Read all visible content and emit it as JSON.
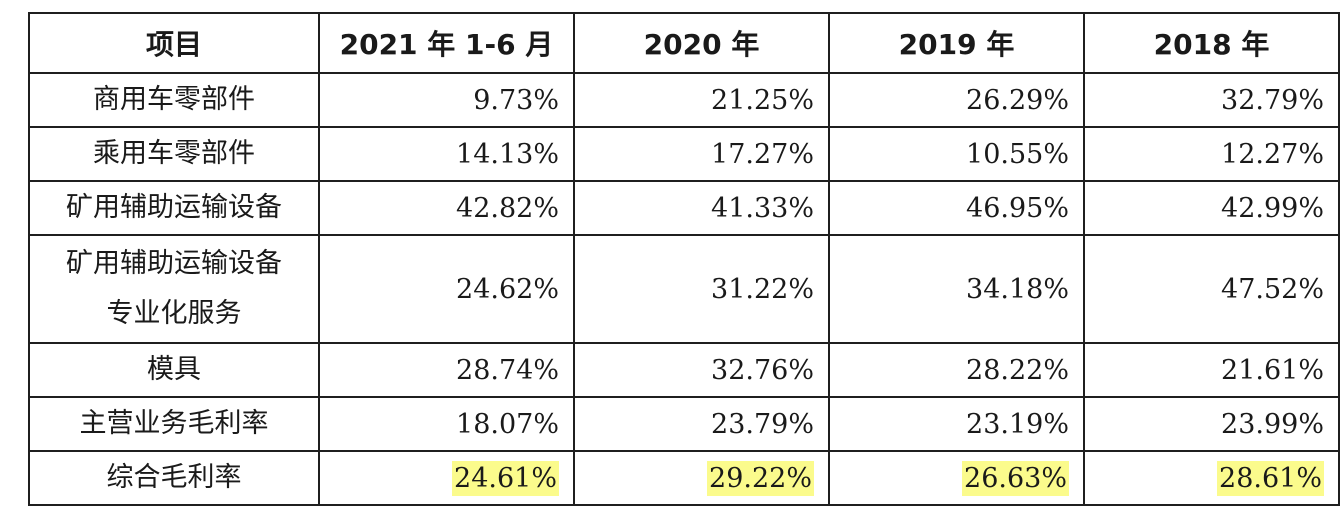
{
  "table": {
    "headers": [
      "项目",
      "2021 年 1-6 月",
      "2020 年",
      "2019 年",
      "2018 年"
    ],
    "rows": [
      {
        "label": [
          "商用车零部件"
        ],
        "values": [
          "9.73%",
          "21.25%",
          "26.29%",
          "32.79%"
        ]
      },
      {
        "label": [
          "乘用车零部件"
        ],
        "values": [
          "14.13%",
          "17.27%",
          "10.55%",
          "12.27%"
        ]
      },
      {
        "label": [
          "矿用辅助运输设备"
        ],
        "values": [
          "42.82%",
          "41.33%",
          "46.95%",
          "42.99%"
        ]
      },
      {
        "label": [
          "矿用辅助运输设备",
          "专业化服务"
        ],
        "values": [
          "24.62%",
          "31.22%",
          "34.18%",
          "47.52%"
        ]
      },
      {
        "label": [
          "模具"
        ],
        "values": [
          "28.74%",
          "32.76%",
          "28.22%",
          "21.61%"
        ]
      },
      {
        "label": [
          "主营业务毛利率"
        ],
        "values": [
          "18.07%",
          "23.79%",
          "23.19%",
          "23.99%"
        ]
      },
      {
        "label": [
          "综合毛利率"
        ],
        "values": [
          "24.61%",
          "29.22%",
          "26.63%",
          "28.61%"
        ]
      }
    ],
    "highlight_color": "#fbfb8c"
  }
}
